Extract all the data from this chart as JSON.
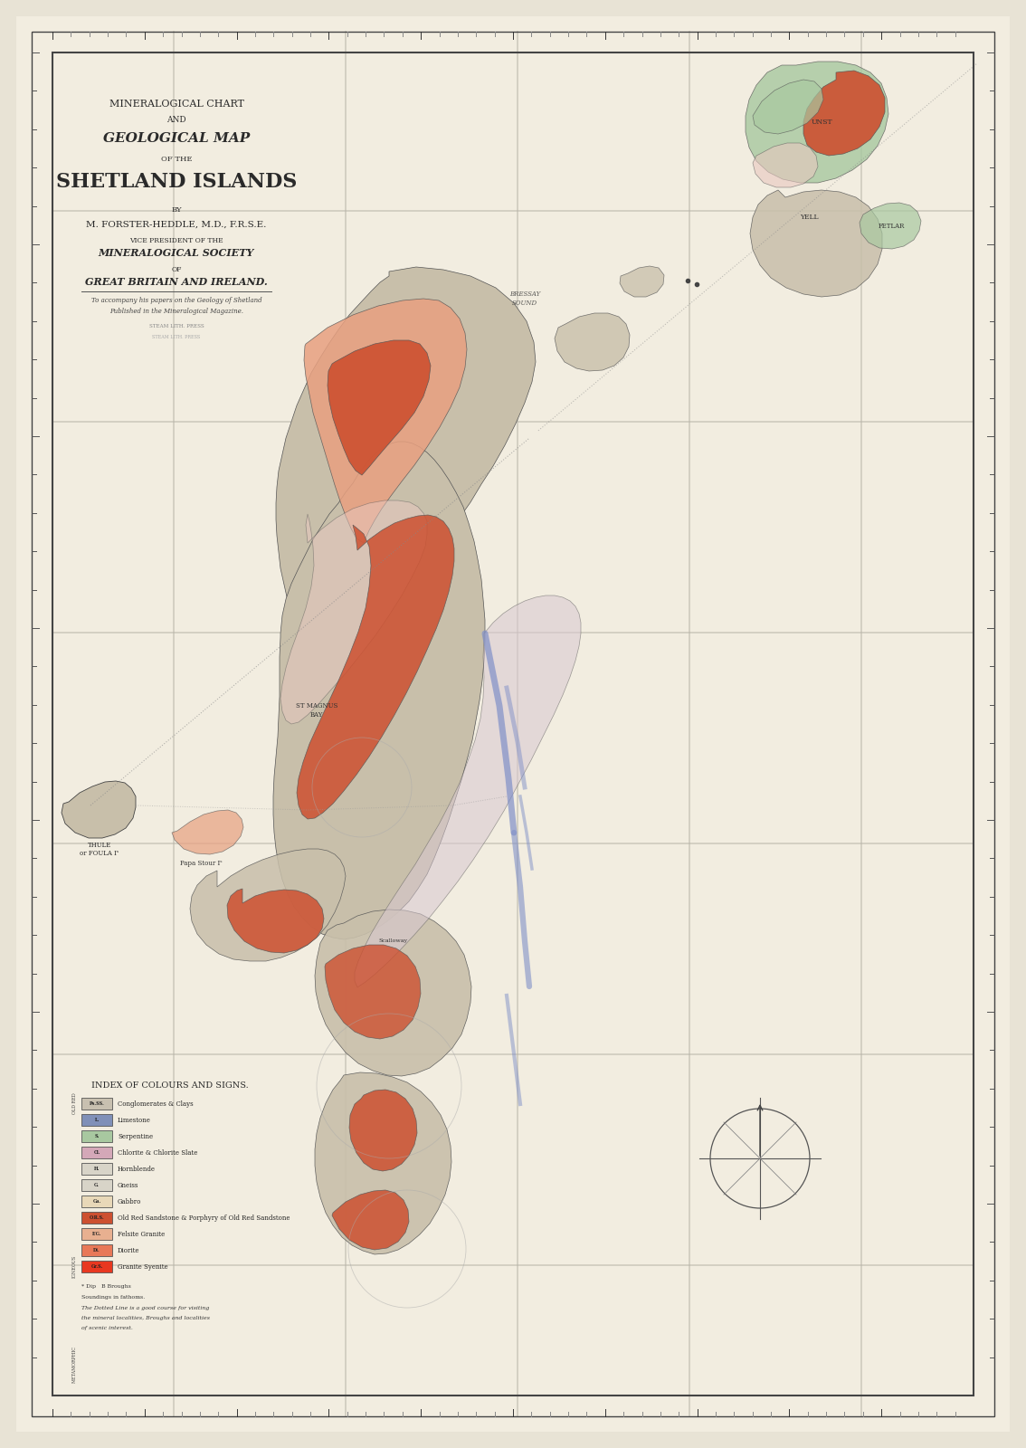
{
  "title_line1": "MINERALOGICAL CHART",
  "title_line2": "AND",
  "title_line3": "GEOLOGICAL MAP",
  "title_line4": "OF THE",
  "title_line5": "SHETLAND ISLANDS",
  "title_line6": "BY",
  "title_line7": "M. FORSTER-HEDDLE, M.D., F.R.S.E.",
  "title_line8": "VICE PRESIDENT OF THE",
  "title_line9": "MINERALOGICAL SOCIETY",
  "title_line10": "OF",
  "title_line11": "GREAT BRITAIN AND IRELAND.",
  "title_line12": "To accompany his papers on the Geology of Shetland",
  "title_line13": "Published in the Mineralogical Magazine.",
  "legend_title": "INDEX OF COLOURS AND SIGNS.",
  "background_color": "#e8e3d5",
  "paper_color": "#f2ede0",
  "border_color": "#444444",
  "grid_color": "#c8c4b8",
  "col_schist": "#c8bfaa",
  "col_ors": "#cd5030",
  "col_ors_light": "#e8a080",
  "col_serpentine": "#a8c8a0",
  "col_chlorite": "#d4a8b8",
  "col_limestone": "#8090b8",
  "col_gabbro": "#e8d8b8",
  "col_felsite": "#e8b090",
  "col_pink": "#e8c8c0",
  "col_diorite": "#e87858",
  "col_granite": "#e83820",
  "col_blue_dyke": "#8090c8",
  "col_green_serp": "#90b890",
  "legend_items": [
    {
      "color": "#c8c0b0",
      "label": "Conglomerates & Clays",
      "code": "Ps.SS."
    },
    {
      "color": "#8090b8",
      "label": "Limestone",
      "code": "L."
    },
    {
      "color": "#a8c8a0",
      "label": "Serpentine",
      "code": "S."
    },
    {
      "color": "#d4a8b8",
      "label": "Chlorite & Chlorite Slate",
      "code": "Cl."
    },
    {
      "color": "#d8d4c8",
      "label": "Hornblende",
      "code": "H."
    },
    {
      "color": "#d8d4c8",
      "label": "Gneiss",
      "code": "G."
    },
    {
      "color": "#e8d8b8",
      "label": "Gabbro",
      "code": "Ga."
    },
    {
      "color": "#cd5030",
      "label": "Old Red Sandstone & Porphyry of Old Red Sandstone",
      "code": "O.R.S."
    },
    {
      "color": "#e8b090",
      "label": "Felsite Granite",
      "code": "F.G."
    },
    {
      "color": "#e87858",
      "label": "Diorite",
      "code": "Di."
    },
    {
      "color": "#e83820",
      "label": "Granite Syenite",
      "code": "Gr.S."
    }
  ]
}
